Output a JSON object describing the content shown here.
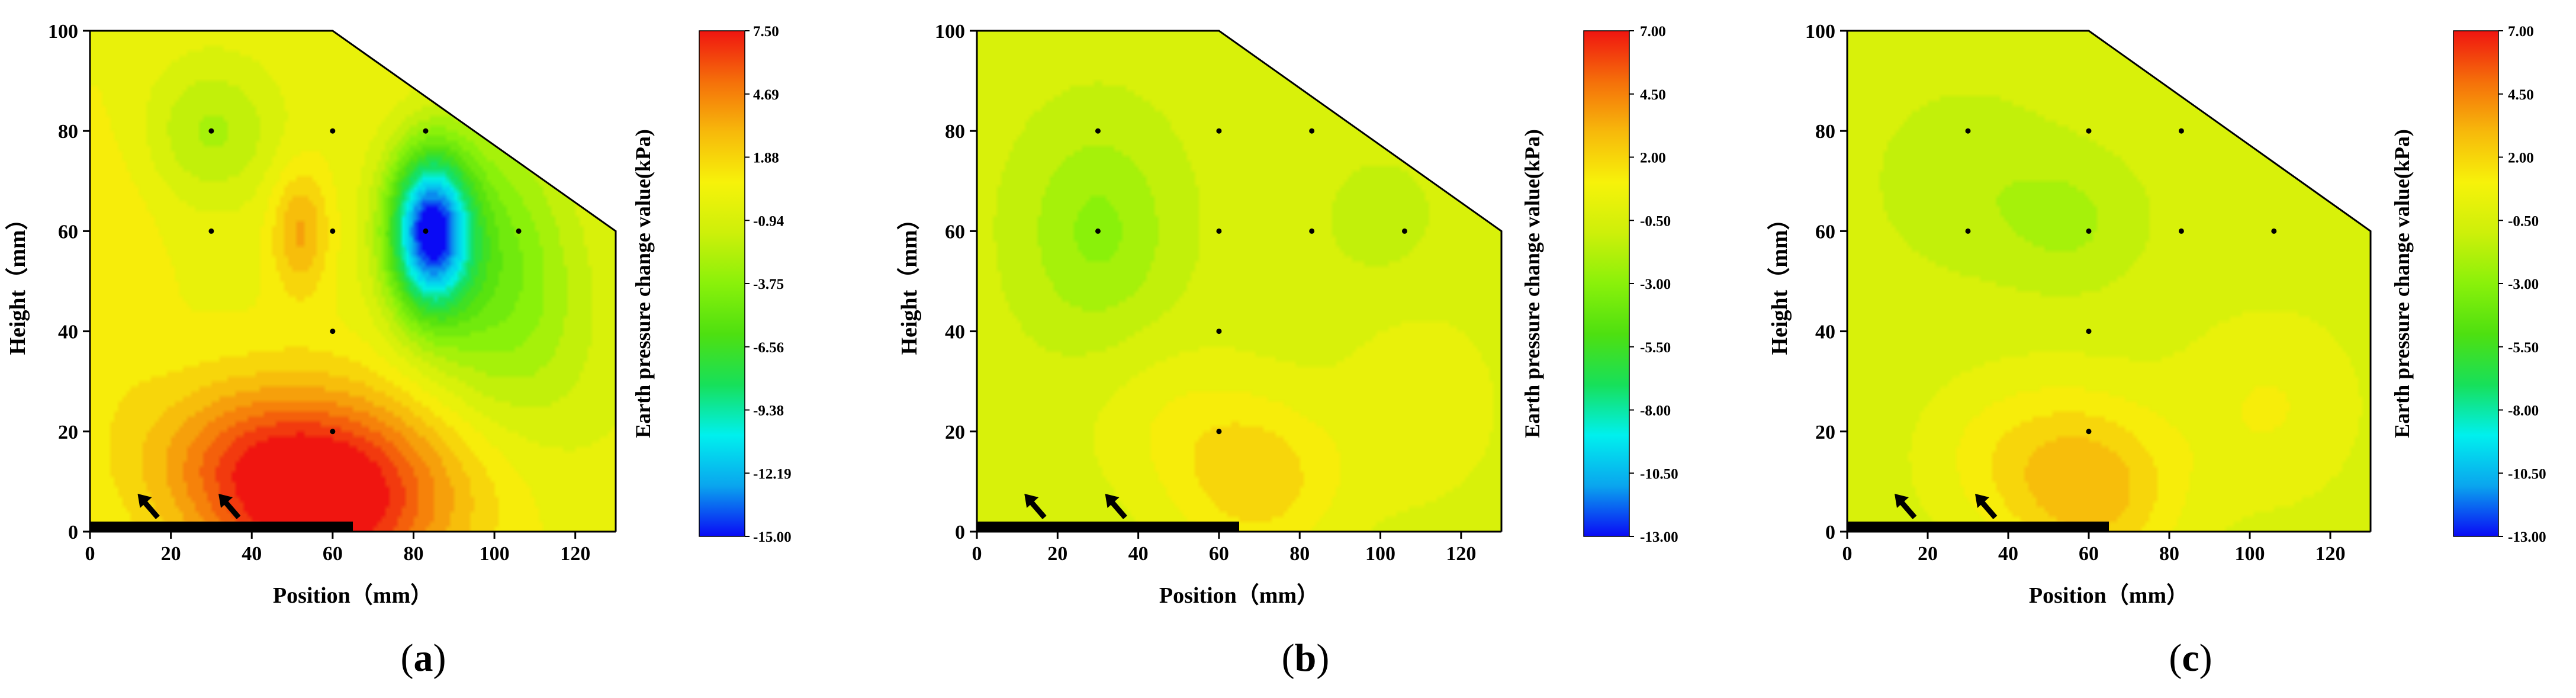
{
  "chart_data": [
    {
      "type": "heatmap",
      "panel_label": "(a)",
      "panel_letter": "a",
      "xlabel": "Position（mm）",
      "ylabel": "Height（mm）",
      "xlim": [
        0,
        130
      ],
      "ylim": [
        0,
        100
      ],
      "x_ticks": [
        "0",
        "20",
        "40",
        "60",
        "80",
        "100",
        "120"
      ],
      "y_ticks": [
        "0",
        "20",
        "40",
        "60",
        "80",
        "100"
      ],
      "domain_outline": [
        [
          0,
          0
        ],
        [
          130,
          0
        ],
        [
          130,
          60
        ],
        [
          60,
          100
        ],
        [
          0,
          100
        ]
      ],
      "measurement_points": [
        [
          30,
          80
        ],
        [
          60,
          80
        ],
        [
          83,
          80
        ],
        [
          30,
          60
        ],
        [
          60,
          60
        ],
        [
          83,
          60
        ],
        [
          106,
          60
        ],
        [
          60,
          40
        ],
        [
          60,
          20
        ]
      ],
      "loading_plate": {
        "x_start": 0,
        "x_end": 65
      },
      "arrows_at_x": [
        15,
        35
      ],
      "colorbar": {
        "label": "Earth pressure change value(kPa)",
        "ticks": [
          "7.50",
          "4.69",
          "1.88",
          "-0.94",
          "-3.75",
          "-6.56",
          "-9.38",
          "-12.19",
          "-15.00"
        ],
        "min": -15.0,
        "max": 7.5
      },
      "features": [
        {
          "x": 57,
          "y": 5,
          "value": 6.3,
          "sx": 18,
          "sy": 14
        },
        {
          "x": 36,
          "y": 14,
          "value": 4.0,
          "sx": 18,
          "sy": 12
        },
        {
          "x": 78,
          "y": 10,
          "value": 3.0,
          "sx": 22,
          "sy": 14
        },
        {
          "x": 84,
          "y": 60,
          "value": -13.4,
          "sx": 7,
          "sy": 11
        },
        {
          "x": 98,
          "y": 55,
          "value": -4.0,
          "sx": 14,
          "sy": 20
        },
        {
          "x": 52,
          "y": 60,
          "value": 3.5,
          "sx": 5,
          "sy": 9
        },
        {
          "x": 30,
          "y": 80,
          "value": -2.5,
          "sx": 12,
          "sy": 10
        },
        {
          "x": 75,
          "y": 90,
          "value": 0.5,
          "sx": 12,
          "sy": 8
        },
        {
          "x": 5,
          "y": 55,
          "value": 1.2,
          "sx": 10,
          "sy": 25
        },
        {
          "x": 112,
          "y": 35,
          "value": -1.2,
          "sx": 18,
          "sy": 22
        }
      ]
    },
    {
      "type": "heatmap",
      "panel_label": "(b)",
      "panel_letter": "b",
      "xlabel": "Position（mm）",
      "ylabel": "Height（mm）",
      "xlim": [
        0,
        130
      ],
      "ylim": [
        0,
        100
      ],
      "x_ticks": [
        "0",
        "20",
        "40",
        "60",
        "80",
        "100",
        "120"
      ],
      "y_ticks": [
        "0",
        "20",
        "40",
        "60",
        "80",
        "100"
      ],
      "domain_outline": [
        [
          0,
          0
        ],
        [
          130,
          0
        ],
        [
          130,
          60
        ],
        [
          60,
          100
        ],
        [
          0,
          100
        ]
      ],
      "measurement_points": [
        [
          30,
          80
        ],
        [
          60,
          80
        ],
        [
          83,
          80
        ],
        [
          30,
          60
        ],
        [
          60,
          60
        ],
        [
          83,
          60
        ],
        [
          106,
          60
        ],
        [
          60,
          40
        ],
        [
          60,
          20
        ]
      ],
      "loading_plate": {
        "x_start": 0,
        "x_end": 65
      },
      "arrows_at_x": [
        15,
        35
      ],
      "colorbar": {
        "label": "Earth pressure change value(kPa)",
        "ticks": [
          "7.00",
          "4.50",
          "2.00",
          "-0.50",
          "-3.00",
          "-5.50",
          "-8.00",
          "-10.50",
          "-13.00"
        ],
        "min": -13.0,
        "max": 7.0
      },
      "features": [
        {
          "x": 30,
          "y": 60,
          "value": -2.8,
          "sx": 13,
          "sy": 15
        },
        {
          "x": 70,
          "y": 10,
          "value": 2.0,
          "sx": 15,
          "sy": 12
        },
        {
          "x": 48,
          "y": 22,
          "value": 0.5,
          "sx": 16,
          "sy": 12
        },
        {
          "x": 100,
          "y": 62,
          "value": -1.3,
          "sx": 10,
          "sy": 9
        },
        {
          "x": 110,
          "y": 25,
          "value": 0.6,
          "sx": 14,
          "sy": 14
        }
      ]
    },
    {
      "type": "heatmap",
      "panel_label": "(c)",
      "panel_letter": "c",
      "xlabel": "Position（mm）",
      "ylabel": "Height（mm）",
      "xlim": [
        0,
        130
      ],
      "ylim": [
        0,
        100
      ],
      "x_ticks": [
        "0",
        "20",
        "40",
        "60",
        "80",
        "100",
        "120"
      ],
      "y_ticks": [
        "0",
        "20",
        "40",
        "60",
        "80",
        "100"
      ],
      "domain_outline": [
        [
          0,
          0
        ],
        [
          130,
          0
        ],
        [
          130,
          60
        ],
        [
          60,
          100
        ],
        [
          0,
          100
        ]
      ],
      "measurement_points": [
        [
          30,
          80
        ],
        [
          60,
          80
        ],
        [
          83,
          80
        ],
        [
          30,
          60
        ],
        [
          60,
          60
        ],
        [
          83,
          60
        ],
        [
          106,
          60
        ],
        [
          60,
          40
        ],
        [
          60,
          20
        ]
      ],
      "loading_plate": {
        "x_start": 0,
        "x_end": 65
      },
      "arrows_at_x": [
        15,
        35
      ],
      "colorbar": {
        "label": "Earth pressure change value(kPa)",
        "ticks": [
          "7.00",
          "4.50",
          "2.00",
          "-0.50",
          "-3.00",
          "-5.50",
          "-8.00",
          "-10.50",
          "-13.00"
        ],
        "min": -13.0,
        "max": 7.0
      },
      "features": [
        {
          "x": 62,
          "y": 8,
          "value": 2.6,
          "sx": 15,
          "sy": 13
        },
        {
          "x": 40,
          "y": 15,
          "value": 1.0,
          "sx": 16,
          "sy": 12
        },
        {
          "x": 55,
          "y": 62,
          "value": -1.9,
          "sx": 12,
          "sy": 9
        },
        {
          "x": 30,
          "y": 70,
          "value": -1.5,
          "sx": 15,
          "sy": 12
        },
        {
          "x": 105,
          "y": 25,
          "value": 0.8,
          "sx": 16,
          "sy": 14
        },
        {
          "x": 100,
          "y": 65,
          "value": -0.9,
          "sx": 10,
          "sy": 9
        }
      ]
    }
  ],
  "colormap": [
    "#0a0af5",
    "#0aa5ee",
    "#00f0ee",
    "#17e05a",
    "#4ee010",
    "#8af10a",
    "#cdf00a",
    "#f7f20a",
    "#f7b90b",
    "#f56f0a",
    "#f01510"
  ]
}
